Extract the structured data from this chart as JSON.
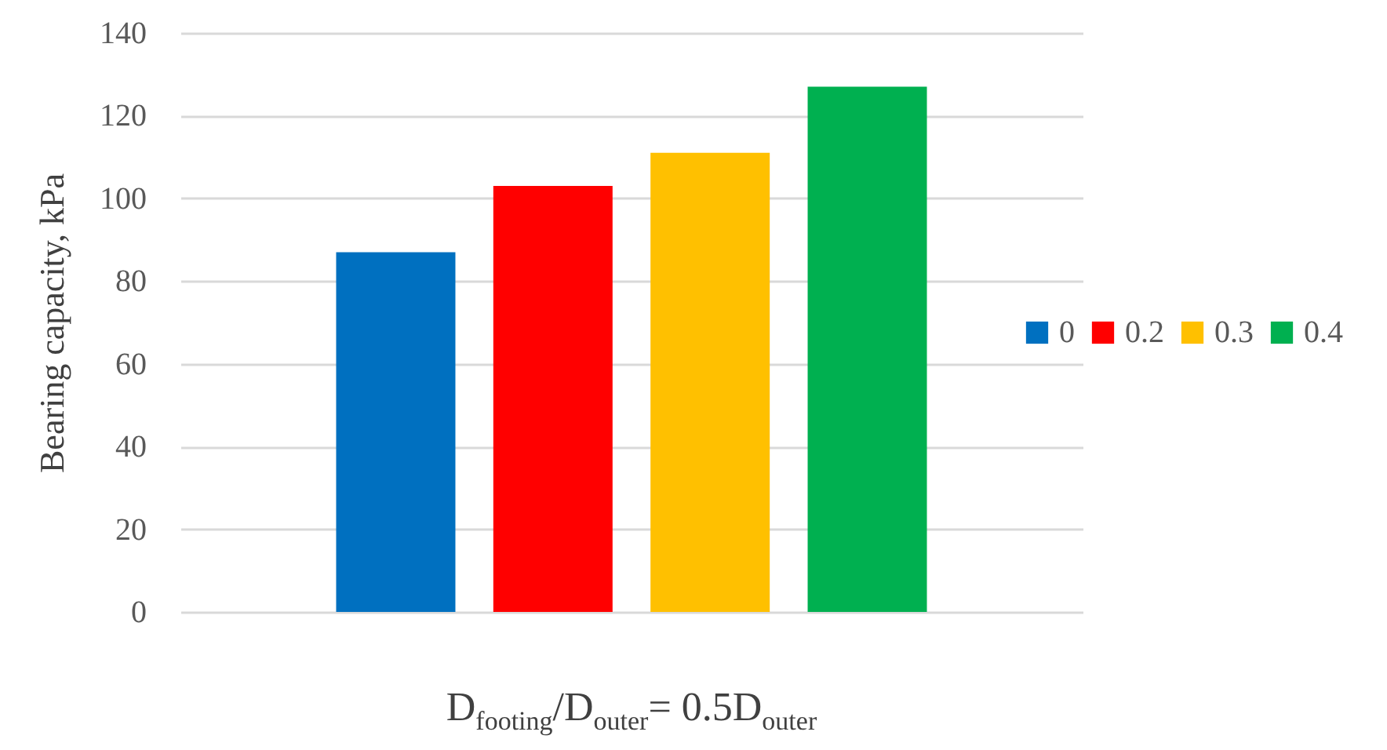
{
  "chart_data": {
    "type": "bar",
    "ylabel": "Bearing capacity, kPa",
    "xlabel": "D$_{footing}$/D$_{outer}$= 0.5D$_{outer}$",
    "categories": [
      null
    ],
    "series": [
      {
        "name": "0",
        "color": "#0070c0",
        "values": [
          87
        ]
      },
      {
        "name": "0.2",
        "color": "#ff0000",
        "values": [
          103
        ]
      },
      {
        "name": "0.3",
        "color": "#ffc000",
        "values": [
          111
        ]
      },
      {
        "name": "0.4",
        "color": "#00b050",
        "values": [
          127
        ]
      }
    ],
    "ylim": [
      0,
      140
    ],
    "yticks": [
      0,
      20,
      40,
      60,
      80,
      100,
      120,
      140
    ],
    "grid": "y",
    "legend": "right"
  }
}
